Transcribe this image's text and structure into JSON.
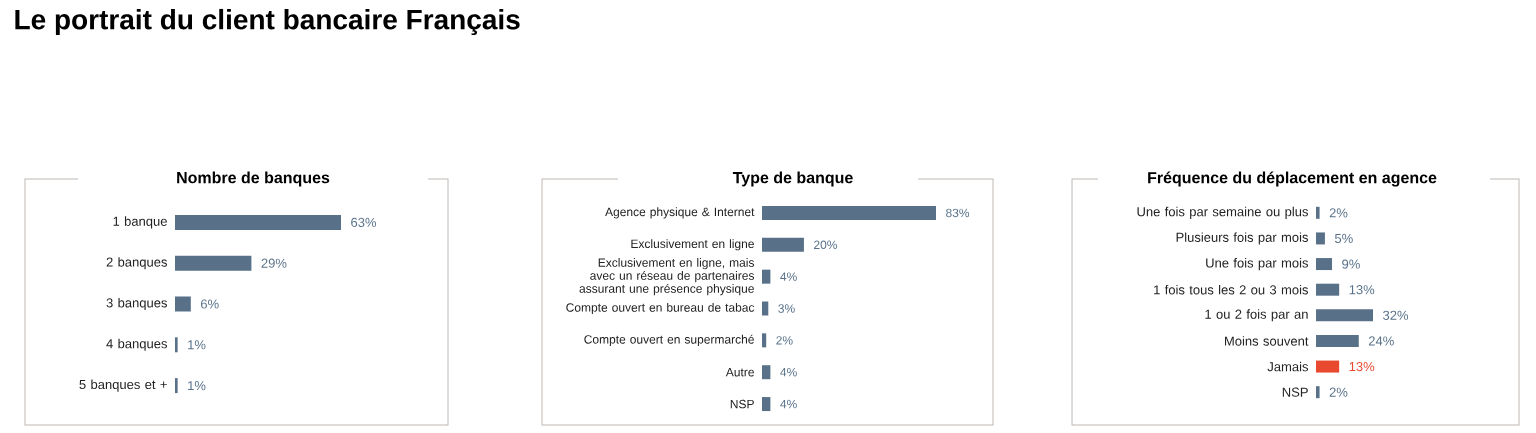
{
  "chart_data": [
    {
      "type": "other",
      "title": "Le portrait du client bancaire Français"
    },
    {
      "type": "bar",
      "orientation": "horizontal",
      "title": "Nombre de banques",
      "categories": [
        "1 banque",
        "2 banques",
        "3 banques",
        "4 banques",
        "5 banques et +"
      ],
      "values": [
        63,
        29,
        6,
        1,
        1
      ],
      "colors": [
        "#587189",
        "#587189",
        "#587189",
        "#587189",
        "#587189"
      ],
      "value_labels": [
        "63%",
        "29%",
        "6%",
        "1%",
        "1%"
      ]
    },
    {
      "type": "bar",
      "orientation": "horizontal",
      "title": "Type de banque",
      "categories": [
        "Agence physique & Internet",
        "Exclusivement en ligne",
        "Exclusivement en ligne, mais avec un réseau de partenaires assurant une présence physique",
        "Compte ouvert en bureau de tabac",
        "Compte ouvert en supermarché",
        "Autre",
        "NSP"
      ],
      "values": [
        83,
        20,
        4,
        3,
        2,
        4,
        4
      ],
      "colors": [
        "#587189",
        "#587189",
        "#587189",
        "#587189",
        "#587189",
        "#587189",
        "#587189"
      ],
      "value_labels": [
        "83%",
        "20%",
        "4%",
        "3%",
        "2%",
        "4%",
        "4%"
      ]
    },
    {
      "type": "bar",
      "orientation": "horizontal",
      "title": "Fréquence du déplacement en agence",
      "categories": [
        "Une fois par semaine ou plus",
        "Plusieurs fois par mois",
        "Une fois par mois",
        "1 fois tous les 2 ou 3 mois",
        "1 ou 2 fois par an",
        "Moins souvent",
        "Jamais",
        "NSP"
      ],
      "values": [
        2,
        5,
        9,
        13,
        32,
        24,
        13,
        2
      ],
      "colors": [
        "#587189",
        "#587189",
        "#587189",
        "#587189",
        "#587189",
        "#587189",
        "#e8492f",
        "#587189"
      ],
      "value_labels": [
        "2%",
        "5%",
        "9%",
        "13%",
        "32%",
        "24%",
        "13%",
        "2%"
      ]
    }
  ]
}
